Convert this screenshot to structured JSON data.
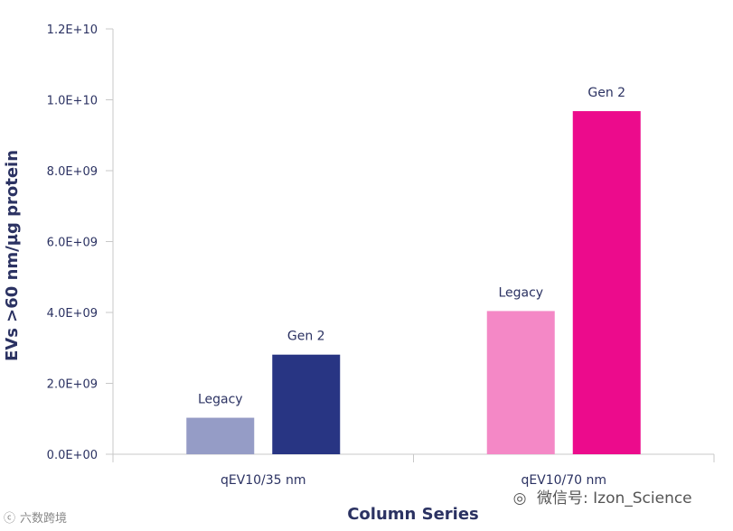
{
  "chart_data": {
    "type": "bar",
    "title": "",
    "xlabel": "Column Series",
    "ylabel": "EVs >60 nm/µg protein",
    "ylim": [
      0,
      12000000000
    ],
    "yticks": [
      0,
      2000000000,
      4000000000,
      6000000000,
      8000000000,
      10000000000,
      12000000000
    ],
    "ytick_labels": [
      "0.0E+00",
      "2.0E+09",
      "4.0E+09",
      "6.0E+09",
      "8.0E+09",
      "1.0E+10",
      "1.2E+10"
    ],
    "categories": [
      "qEV10/35 nm",
      "qEV10/70 nm"
    ],
    "groups": [
      {
        "category": "qEV10/35 nm",
        "bars": [
          {
            "label": "Legacy",
            "value": 1030000000,
            "color": "#959cc6"
          },
          {
            "label": "Gen 2",
            "value": 2810000000,
            "color": "#283583"
          }
        ]
      },
      {
        "category": "qEV10/70 nm",
        "bars": [
          {
            "label": "Legacy",
            "value": 4040000000,
            "color": "#f488c6"
          },
          {
            "label": "Gen 2",
            "value": 9680000000,
            "color": "#ec0b8c"
          }
        ]
      }
    ],
    "grid": false,
    "legend": "none"
  },
  "watermarks": {
    "right": "微信号: Izon_Science",
    "left": "六数跨境"
  },
  "colors": {
    "axis": "#c8c8c8",
    "text": "#2b3262"
  }
}
